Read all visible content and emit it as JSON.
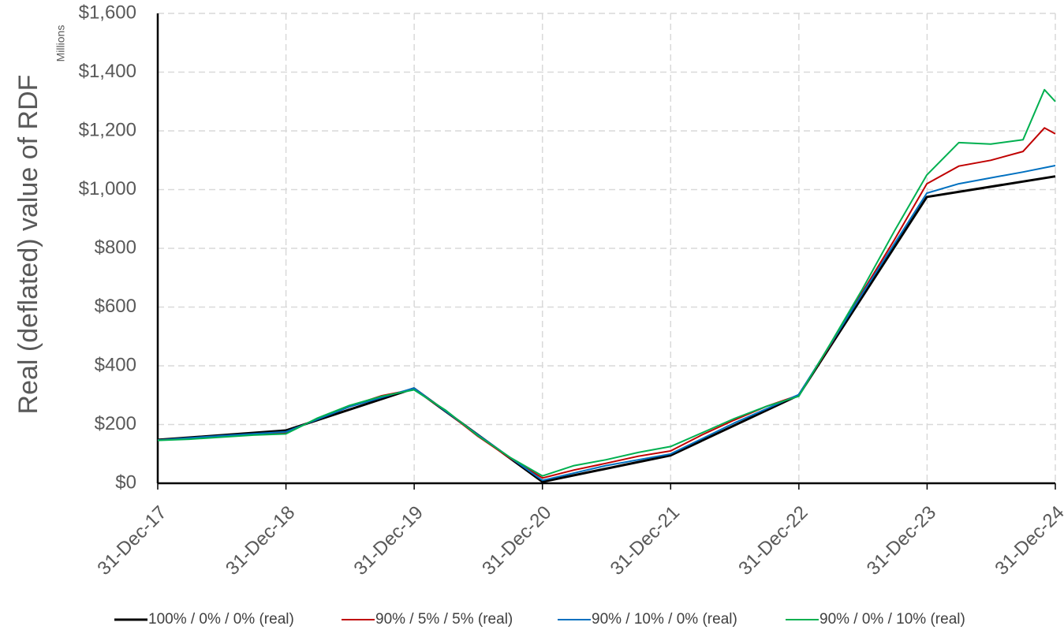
{
  "chart_data": {
    "type": "line",
    "title": "",
    "xlabel": "",
    "ylabel": "Real (deflated) value of RDF",
    "units_label": "Millions",
    "y_tick_labels": [
      "$0",
      "$200",
      "$400",
      "$600",
      "$800",
      "$1,000",
      "$1,200",
      "$1,400",
      "$1,600"
    ],
    "ylim": [
      0,
      1600
    ],
    "x_tick_labels": [
      "31-Dec-17",
      "31-Dec-18",
      "31-Dec-19",
      "31-Dec-20",
      "31-Dec-21",
      "31-Dec-22",
      "31-Dec-23",
      "31-Dec-24"
    ],
    "xlim": [
      "2017-12-31",
      "2024-12-31"
    ],
    "grid": true,
    "legend_position": "bottom",
    "series": [
      {
        "name": "100% / 0% / 0% (real)",
        "color": "#000000",
        "points": [
          [
            "2017-12-31",
            148
          ],
          [
            "2018-12-31",
            180
          ],
          [
            "2019-12-31",
            323
          ],
          [
            "2020-12-31",
            5
          ],
          [
            "2021-12-31",
            95
          ],
          [
            "2022-12-31",
            300
          ],
          [
            "2023-12-31",
            975
          ],
          [
            "2024-12-31",
            1045
          ]
        ]
      },
      {
        "name": "90% / 5% / 5% (real)",
        "color": "#C00000",
        "points": [
          [
            "2017-12-31",
            147
          ],
          [
            "2018-03-31",
            152
          ],
          [
            "2018-06-30",
            160
          ],
          [
            "2018-09-30",
            168
          ],
          [
            "2018-12-31",
            172
          ],
          [
            "2019-03-31",
            220
          ],
          [
            "2019-06-30",
            262
          ],
          [
            "2019-09-30",
            298
          ],
          [
            "2019-12-31",
            320
          ],
          [
            "2020-03-31",
            245
          ],
          [
            "2020-06-30",
            160
          ],
          [
            "2020-09-30",
            85
          ],
          [
            "2020-12-31",
            18
          ],
          [
            "2021-03-31",
            45
          ],
          [
            "2021-06-30",
            68
          ],
          [
            "2021-09-30",
            92
          ],
          [
            "2021-12-31",
            110
          ],
          [
            "2022-03-31",
            165
          ],
          [
            "2022-06-30",
            215
          ],
          [
            "2022-09-30",
            262
          ],
          [
            "2022-12-31",
            300
          ],
          [
            "2023-03-31",
            470
          ],
          [
            "2023-06-30",
            650
          ],
          [
            "2023-09-30",
            830
          ],
          [
            "2023-12-31",
            1020
          ],
          [
            "2024-03-31",
            1080
          ],
          [
            "2024-06-30",
            1100
          ],
          [
            "2024-09-30",
            1130
          ],
          [
            "2024-11-30",
            1210
          ],
          [
            "2024-12-31",
            1190
          ]
        ]
      },
      {
        "name": "90% / 10% / 0% (real)",
        "color": "#0070C0",
        "points": [
          [
            "2017-12-31",
            147
          ],
          [
            "2018-06-30",
            162
          ],
          [
            "2018-12-31",
            175
          ],
          [
            "2019-06-30",
            260
          ],
          [
            "2019-12-31",
            324
          ],
          [
            "2020-06-30",
            165
          ],
          [
            "2020-12-31",
            10
          ],
          [
            "2021-06-30",
            60
          ],
          [
            "2021-12-31",
            100
          ],
          [
            "2022-06-30",
            205
          ],
          [
            "2022-12-31",
            302
          ],
          [
            "2023-06-30",
            645
          ],
          [
            "2023-12-31",
            988
          ],
          [
            "2024-03-31",
            1020
          ],
          [
            "2024-06-30",
            1040
          ],
          [
            "2024-09-30",
            1060
          ],
          [
            "2024-12-31",
            1082
          ]
        ]
      },
      {
        "name": "90% / 0% / 10% (real)",
        "color": "#00B050",
        "points": [
          [
            "2017-12-31",
            146
          ],
          [
            "2018-03-31",
            150
          ],
          [
            "2018-06-30",
            157
          ],
          [
            "2018-09-30",
            164
          ],
          [
            "2018-12-31",
            168
          ],
          [
            "2019-03-31",
            222
          ],
          [
            "2019-06-30",
            265
          ],
          [
            "2019-09-30",
            296
          ],
          [
            "2019-12-31",
            318
          ],
          [
            "2020-03-31",
            248
          ],
          [
            "2020-06-30",
            162
          ],
          [
            "2020-09-30",
            88
          ],
          [
            "2020-12-31",
            25
          ],
          [
            "2021-03-31",
            60
          ],
          [
            "2021-06-30",
            80
          ],
          [
            "2021-09-30",
            105
          ],
          [
            "2021-12-31",
            125
          ],
          [
            "2022-03-31",
            172
          ],
          [
            "2022-06-30",
            220
          ],
          [
            "2022-09-30",
            262
          ],
          [
            "2022-12-31",
            296
          ],
          [
            "2023-03-31",
            475
          ],
          [
            "2023-06-30",
            660
          ],
          [
            "2023-09-30",
            860
          ],
          [
            "2023-12-31",
            1050
          ],
          [
            "2024-03-31",
            1160
          ],
          [
            "2024-06-30",
            1155
          ],
          [
            "2024-09-30",
            1170
          ],
          [
            "2024-11-30",
            1340
          ],
          [
            "2024-12-31",
            1300
          ]
        ]
      }
    ]
  }
}
